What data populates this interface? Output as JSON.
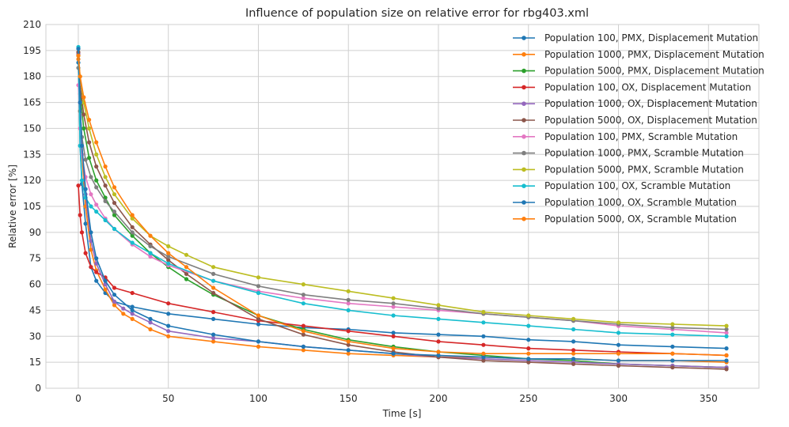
{
  "chart_data": {
    "type": "line",
    "title": "Influence of population size on relative error for rbg403.xml",
    "xlabel": "Time [s]",
    "ylabel": "Relative error [%]",
    "xlim": [
      -18,
      378
    ],
    "ylim": [
      0,
      210
    ],
    "xticks": [
      0,
      50,
      100,
      150,
      200,
      250,
      300,
      350
    ],
    "yticks": [
      0,
      15,
      30,
      45,
      60,
      75,
      90,
      105,
      120,
      135,
      150,
      165,
      180,
      195,
      210
    ],
    "grid": true,
    "legend_position": "top-right",
    "marker": "circle",
    "series": [
      {
        "name": "Population 100, PMX, Displacement Mutation",
        "color": "#1f77b4",
        "x": [
          0,
          1,
          2,
          4,
          7,
          10,
          15,
          20,
          30,
          50,
          75,
          100,
          125,
          150,
          175,
          200,
          225,
          250,
          275,
          300,
          330,
          360
        ],
        "y": [
          188,
          140,
          118,
          95,
          70,
          62,
          55,
          50,
          47,
          43,
          40,
          37,
          35,
          34,
          32,
          31,
          30,
          28,
          27,
          25,
          24,
          23
        ]
      },
      {
        "name": "Population 1000, PMX, Displacement Mutation",
        "color": "#ff7f0e",
        "x": [
          0,
          1,
          2,
          4,
          7,
          10,
          15,
          20,
          25,
          30,
          40,
          50,
          75,
          100,
          125,
          150,
          175,
          200,
          225,
          250,
          275,
          300,
          330,
          360
        ],
        "y": [
          190,
          160,
          135,
          105,
          80,
          68,
          57,
          48,
          43,
          40,
          34,
          30,
          27,
          24,
          22,
          20,
          19,
          18,
          18,
          17,
          17,
          16,
          16,
          15
        ]
      },
      {
        "name": "Population 5000, PMX, Displacement Mutation",
        "color": "#2ca02c",
        "x": [
          0,
          1,
          3,
          6,
          10,
          15,
          20,
          30,
          40,
          50,
          60,
          75,
          100,
          125,
          150,
          175,
          200,
          225,
          250,
          275,
          300,
          330,
          360
        ],
        "y": [
          192,
          170,
          150,
          133,
          120,
          110,
          100,
          88,
          78,
          70,
          63,
          54,
          42,
          34,
          28,
          24,
          21,
          19,
          17,
          16,
          14,
          13,
          12
        ]
      },
      {
        "name": "Population 100, OX, Displacement Mutation",
        "color": "#d62728",
        "x": [
          0,
          1,
          2,
          4,
          7,
          10,
          15,
          20,
          30,
          50,
          75,
          100,
          125,
          150,
          175,
          200,
          225,
          250,
          275,
          300,
          330,
          360
        ],
        "y": [
          117,
          100,
          90,
          78,
          70,
          67,
          64,
          58,
          55,
          49,
          44,
          39,
          36,
          33,
          30,
          27,
          25,
          23,
          22,
          21,
          20,
          19
        ]
      },
      {
        "name": "Population 1000, OX, Displacement Mutation",
        "color": "#9467bd",
        "x": [
          0,
          1,
          2,
          4,
          7,
          10,
          15,
          20,
          25,
          30,
          40,
          50,
          75,
          100,
          125,
          150,
          175,
          200,
          225,
          250,
          275,
          300,
          330,
          360
        ],
        "y": [
          193,
          165,
          140,
          112,
          85,
          72,
          60,
          50,
          46,
          43,
          38,
          33,
          29,
          27,
          24,
          22,
          20,
          18,
          17,
          16,
          15,
          14,
          13,
          12
        ]
      },
      {
        "name": "Population 5000, OX, Displacement Mutation",
        "color": "#8c564b",
        "x": [
          0,
          1,
          3,
          6,
          10,
          15,
          20,
          30,
          40,
          50,
          60,
          75,
          100,
          125,
          150,
          175,
          200,
          225,
          250,
          275,
          300,
          330,
          360
        ],
        "y": [
          194,
          175,
          158,
          142,
          128,
          117,
          107,
          93,
          83,
          74,
          66,
          55,
          40,
          31,
          25,
          21,
          18,
          16,
          15,
          14,
          13,
          12,
          11
        ]
      },
      {
        "name": "Population 100, PMX, Scramble Mutation",
        "color": "#e377c2",
        "x": [
          0,
          1,
          2,
          4,
          7,
          10,
          15,
          20,
          30,
          40,
          50,
          75,
          100,
          125,
          150,
          175,
          200,
          225,
          250,
          275,
          300,
          330,
          360
        ],
        "y": [
          175,
          150,
          135,
          122,
          112,
          106,
          98,
          92,
          83,
          76,
          71,
          62,
          56,
          52,
          49,
          47,
          45,
          43,
          41,
          39,
          36,
          34,
          32
        ]
      },
      {
        "name": "Population 1000, PMX, Scramble Mutation",
        "color": "#7f7f7f",
        "x": [
          0,
          1,
          2,
          4,
          7,
          10,
          15,
          20,
          30,
          40,
          50,
          75,
          100,
          125,
          150,
          175,
          200,
          225,
          250,
          275,
          300,
          330,
          360
        ],
        "y": [
          185,
          160,
          145,
          132,
          122,
          116,
          108,
          102,
          90,
          82,
          76,
          66,
          59,
          54,
          51,
          49,
          46,
          43,
          41,
          39,
          37,
          35,
          34
        ]
      },
      {
        "name": "Population 5000, PMX, Scramble Mutation",
        "color": "#bcbd22",
        "x": [
          0,
          1,
          3,
          6,
          10,
          15,
          20,
          30,
          40,
          50,
          60,
          75,
          100,
          125,
          150,
          175,
          200,
          225,
          250,
          275,
          300,
          330,
          360
        ],
        "y": [
          192,
          180,
          165,
          150,
          135,
          122,
          112,
          98,
          88,
          82,
          77,
          70,
          64,
          60,
          56,
          52,
          48,
          44,
          42,
          40,
          38,
          37,
          36
        ]
      },
      {
        "name": "Population 100, OX, Scramble Mutation",
        "color": "#17becf",
        "x": [
          0,
          1,
          2,
          4,
          7,
          10,
          15,
          20,
          30,
          40,
          50,
          75,
          100,
          125,
          150,
          175,
          200,
          225,
          250,
          275,
          300,
          330,
          360
        ],
        "y": [
          197,
          140,
          120,
          110,
          105,
          102,
          97,
          92,
          84,
          78,
          72,
          62,
          55,
          49,
          45,
          42,
          40,
          38,
          36,
          34,
          32,
          31,
          30
        ]
      },
      {
        "name": "Population 1000, OX, Scramble Mutation",
        "color": "#1f77b4",
        "x": [
          0,
          1,
          2,
          4,
          7,
          10,
          15,
          20,
          30,
          40,
          50,
          75,
          100,
          125,
          150,
          175,
          200,
          225,
          250,
          275,
          300,
          330,
          360
        ],
        "y": [
          196,
          165,
          140,
          115,
          90,
          75,
          62,
          54,
          45,
          40,
          36,
          31,
          27,
          24,
          22,
          20,
          19,
          18,
          17,
          17,
          16,
          16,
          16
        ]
      },
      {
        "name": "Population 5000, OX, Scramble Mutation",
        "color": "#ff7f0e",
        "x": [
          0,
          1,
          3,
          6,
          10,
          15,
          20,
          30,
          40,
          50,
          60,
          75,
          100,
          125,
          150,
          175,
          200,
          225,
          250,
          275,
          300,
          330,
          360
        ],
        "y": [
          192,
          180,
          168,
          155,
          142,
          128,
          116,
          100,
          88,
          78,
          70,
          58,
          42,
          33,
          27,
          23,
          21,
          20,
          20,
          20,
          20,
          20,
          19
        ]
      }
    ]
  }
}
